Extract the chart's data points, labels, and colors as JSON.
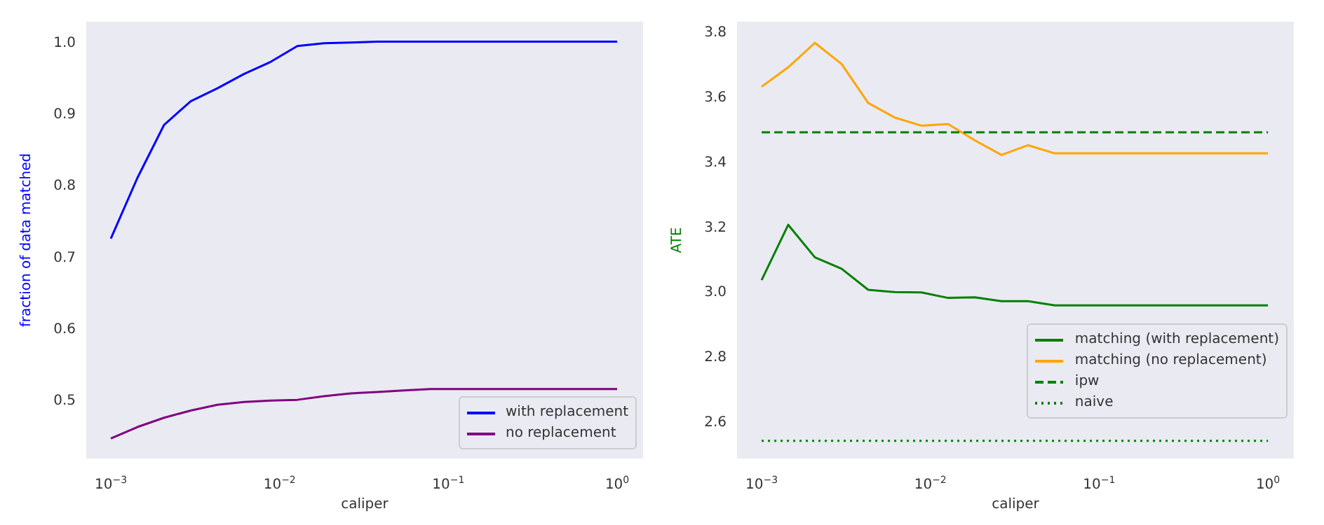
{
  "chart_data": [
    {
      "type": "line",
      "xlabel": "caliper",
      "ylabel": "fraction of data matched",
      "log": "x",
      "x": [
        0.001,
        0.001438,
        0.002069,
        0.002976,
        0.004281,
        0.006158,
        0.008859,
        0.01274,
        0.01833,
        0.02637,
        0.03793,
        0.05456,
        0.07848,
        0.1129,
        0.1624,
        0.2336,
        0.336,
        0.4833,
        0.6952,
        1
      ],
      "xlim": [
        0.000722,
        1.41
      ],
      "xticks": [
        {
          "value": 0.001,
          "label": "10$^{−3}$"
        },
        {
          "value": 0.01,
          "label": "10$^{−2}$"
        },
        {
          "value": 0.1,
          "label": "10$^{−1}$"
        },
        {
          "value": 1,
          "label": "10$^{0}$"
        }
      ],
      "ylim": [
        0.419,
        1.027
      ],
      "yticks": [
        0.5,
        0.6,
        0.7,
        0.8,
        0.9,
        {
          "value": 1,
          "label": "1.0"
        }
      ],
      "legend": "bottom right",
      "series": [
        {
          "name": "with replacement",
          "color": "#0000ff",
          "values": [
            0.725,
            0.81,
            0.884,
            0.917,
            0.935,
            0.955,
            0.972,
            0.994,
            0.998,
            0.999,
            1,
            1,
            1,
            1,
            1,
            1,
            1,
            1,
            1,
            1
          ]
        },
        {
          "name": "no replacement",
          "color": "#800080",
          "values": [
            0.446,
            0.462,
            0.475,
            0.485,
            0.493,
            0.497,
            0.499,
            0.5,
            0.505,
            0.509,
            0.511,
            0.513,
            0.515,
            0.515,
            0.515,
            0.515,
            0.515,
            0.515,
            0.515,
            0.515
          ]
        }
      ]
    },
    {
      "type": "line",
      "xlabel": "caliper",
      "ylabel": "ATE",
      "log": "x",
      "x": [
        0.001,
        0.001438,
        0.002069,
        0.002976,
        0.004281,
        0.006158,
        0.008859,
        0.01274,
        0.01833,
        0.02637,
        0.03793,
        0.05456,
        0.07848,
        0.1129,
        0.1624,
        0.2336,
        0.336,
        0.4833,
        0.6952,
        1
      ],
      "xlim": [
        0.000722,
        1.41
      ],
      "xticks": [
        {
          "value": 0.001,
          "label": "10$^{−3}$"
        },
        {
          "value": 0.01,
          "label": "10$^{−2}$"
        },
        {
          "value": 0.1,
          "label": "10$^{−1}$"
        },
        {
          "value": 1,
          "label": "10$^{0}$"
        }
      ],
      "ylim": [
        2.488,
        3.828
      ],
      "yticks": [
        2.6,
        2.8,
        {
          "value": 3,
          "label": "3.0"
        },
        3.2,
        3.4,
        3.6,
        3.8
      ],
      "legend": "bottom right",
      "series": [
        {
          "name": "matching (with replacement)",
          "color": "#008000",
          "values": [
            3.035,
            3.205,
            3.105,
            3.07,
            3.005,
            2.998,
            2.997,
            2.98,
            2.982,
            2.97,
            2.97,
            2.957,
            2.957,
            2.957,
            2.957,
            2.957,
            2.957,
            2.957,
            2.957,
            2.957
          ]
        },
        {
          "name": "matching (no replacement)",
          "color": "#ffa500",
          "values": [
            3.63,
            3.69,
            3.765,
            3.7,
            3.58,
            3.535,
            3.51,
            3.515,
            3.465,
            3.42,
            3.45,
            3.425,
            3.425,
            3.425,
            3.425,
            3.425,
            3.425,
            3.425,
            3.425,
            3.425
          ]
        },
        {
          "name": "ipw",
          "color": "#008000",
          "line_style": "dashed",
          "values": [
            3.49,
            3.49,
            3.49,
            3.49,
            3.49,
            3.49,
            3.49,
            3.49,
            3.49,
            3.49,
            3.49,
            3.49,
            3.49,
            3.49,
            3.49,
            3.49,
            3.49,
            3.49,
            3.49,
            3.49
          ]
        },
        {
          "name": "naive",
          "color": "#008000",
          "line_style": "dotted",
          "values": [
            2.54,
            2.54,
            2.54,
            2.54,
            2.54,
            2.54,
            2.54,
            2.54,
            2.54,
            2.54,
            2.54,
            2.54,
            2.54,
            2.54,
            2.54,
            2.54,
            2.54,
            2.54,
            2.54,
            2.54
          ]
        }
      ]
    }
  ]
}
